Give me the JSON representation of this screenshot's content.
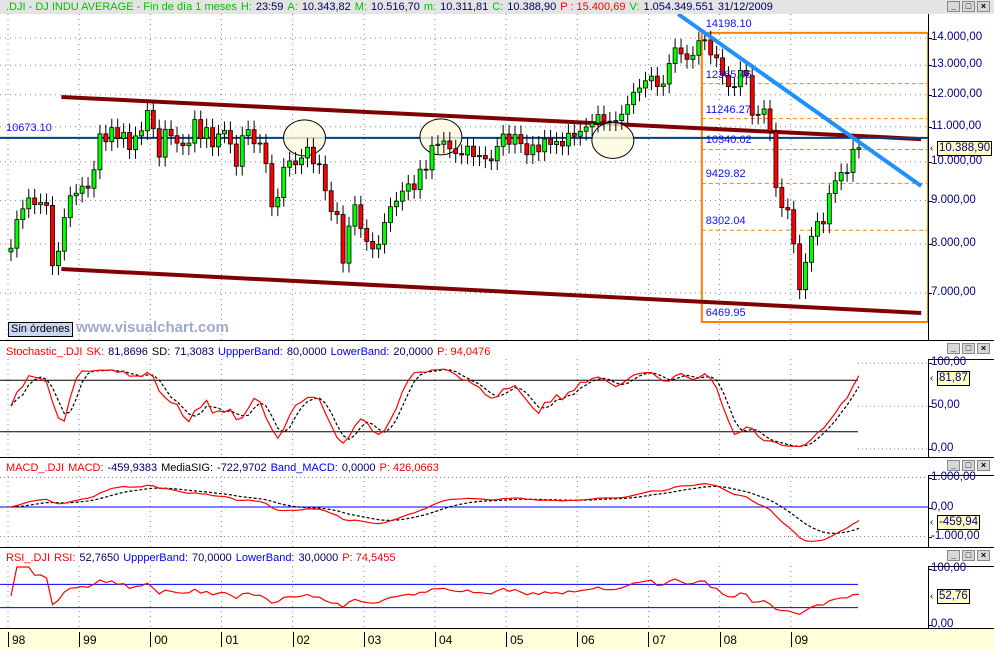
{
  "header": {
    "symbol": ".DJI - DJ INDU AVERAGE - Fin de día 1 meses",
    "h_label": "H:",
    "h": "23:59",
    "a_label": "A:",
    "a": "10.343,82",
    "m_label": "M:",
    "m": "10.516,70",
    "mn_label": "m:",
    "mn": "10.311,81",
    "c_label": "C:",
    "c": "10.388,90",
    "p": "P : 15.400,69",
    "v_label": "V:",
    "v": "1.054.349.551",
    "date": "31/12/2009"
  },
  "window_buttons": {
    "minimize": "_",
    "maximize": "□",
    "close": "×"
  },
  "main": {
    "price_ticks": [
      "14.000,00",
      "13.000,00",
      "12.000,00",
      "11.000,00",
      "10.000,00",
      "9.000,00",
      "8.000,00",
      "7.000,00"
    ],
    "current_price": "10.388,90",
    "horizontal_line_label": "10673.10",
    "orders_button": "Sin órdenes",
    "watermark": "www.visualchart.com",
    "fib_labels": [
      "14198.10",
      "12365.46",
      "11246.27",
      "10340.02",
      "9429.82",
      "8302.04",
      "6469.95"
    ]
  },
  "stochastic": {
    "name": "Stochastic_.DJI",
    "sk_label": "SK:",
    "sk": "81,8696",
    "sd_label": "SD:",
    "sd": "71,3083",
    "ub_label": "UppperBand:",
    "ub": "80,0000",
    "lb_label": "LowerBand:",
    "lb": "20,0000",
    "p": "P: 94,0476",
    "ticks": [
      "100,00",
      "50,00",
      "0,00"
    ],
    "current": "81,87"
  },
  "macd": {
    "name": "MACD_.DJI",
    "macd_label": "MACD:",
    "macd": "-459,9383",
    "sig_label": "MediaSIG:",
    "sig": "-722,9702",
    "band_label": "Band_MACD:",
    "band": "0,0000",
    "p": "P: 426,0663",
    "ticks": [
      "1.000,00",
      "0,00",
      "-1.000,00"
    ],
    "current": "-459,94"
  },
  "rsi": {
    "name": "RSI_.DJI",
    "rsi_label": "RSI:",
    "rsi": "52,7650",
    "ub_label": "UppperBand:",
    "ub": "70,0000",
    "lb_label": "LowerBand:",
    "lb": "30,0000",
    "p": "P: 74,5455",
    "ticks": [
      "100,00",
      "0,00"
    ],
    "current": "52,76"
  },
  "time_axis": [
    "98",
    "99",
    "00",
    "01",
    "02",
    "03",
    "04",
    "05",
    "06",
    "07",
    "08",
    "09"
  ],
  "chart_data": {
    "type": "candlestick",
    "interval": "monthly",
    "start": "1998-01",
    "y_scale": "log",
    "ylim": [
      6300,
      15000
    ],
    "grid": true,
    "colors": {
      "up": "#00ff00",
      "down": "#ff0000",
      "channel": "#800000",
      "trendline": "#1e90ff",
      "horizontal": "#004080",
      "fib": "#ff8000"
    },
    "closes": [
      7907,
      8546,
      8800,
      9063,
      8900,
      8952,
      8883,
      7539,
      7843,
      8592,
      9117,
      9181,
      9359,
      9307,
      9786,
      10789,
      10560,
      10971,
      10655,
      10829,
      10337,
      10729,
      10878,
      11497,
      10941,
      10128,
      10922,
      10734,
      10522,
      10448,
      10522,
      11215,
      10651,
      10971,
      10415,
      10787,
      10887,
      10495,
      9879,
      10735,
      10912,
      10502,
      10523,
      9950,
      8848,
      9075,
      9852,
      10022,
      9920,
      10106,
      10404,
      9946,
      9925,
      9243,
      8737,
      8664,
      7592,
      8397,
      8896,
      8342,
      8054,
      7891,
      7992,
      8480,
      8850,
      8985,
      9234,
      9416,
      9275,
      9801,
      9782,
      10454,
      10488,
      10584,
      10358,
      10226,
      10188,
      10435,
      10140,
      10174,
      10080,
      10027,
      10428,
      10783,
      10490,
      10766,
      10504,
      10193,
      10467,
      10275,
      10641,
      10482,
      10569,
      10440,
      10806,
      10718,
      10865,
      10993,
      11109,
      11367,
      11168,
      11150,
      11186,
      11381,
      11679,
      12081,
      12221,
      12463,
      12622,
      12268,
      12354,
      13063,
      13628,
      13409,
      13212,
      13358,
      13896,
      13930,
      13372,
      13265,
      12650,
      12266,
      12263,
      12820,
      12638,
      11350,
      11378,
      11544,
      10851,
      9325,
      8829,
      8776,
      8001,
      7063,
      7609,
      8168,
      8500,
      8447,
      9172,
      9496,
      9712,
      9713,
      10345,
      10389
    ],
    "horizontal_line": 10673.1,
    "channel_upper": [
      [
        "1998-10",
        11925
      ],
      [
        "2010-11",
        10637
      ]
    ],
    "channel_lower": [
      [
        "1998-10",
        7471
      ],
      [
        "2010-11",
        6630
      ]
    ],
    "trendline": [
      [
        "2007-06",
        14943
      ],
      [
        "2010-11",
        9363
      ]
    ],
    "fibonacci": {
      "from": "2007-10",
      "high": 14198.1,
      "low": 6469.95,
      "levels": [
        14198.1,
        12365.46,
        11246.27,
        10340.02,
        9429.82,
        8302.04,
        6469.95
      ]
    },
    "annotations": [
      {
        "type": "circle",
        "date": "2002-03",
        "value": 10673
      },
      {
        "type": "circle",
        "date": "2004-02",
        "value": 10700
      },
      {
        "type": "circle",
        "date": "2006-07",
        "value": 10600
      }
    ],
    "indicators": {
      "stochastic_bands": [
        80,
        20
      ],
      "stochastic_ylim": [
        0,
        100
      ],
      "macd_band": 0,
      "macd_ylim": [
        -1000,
        1000
      ],
      "rsi_bands": [
        70,
        30
      ],
      "rsi_ylim": [
        0,
        100
      ]
    }
  }
}
